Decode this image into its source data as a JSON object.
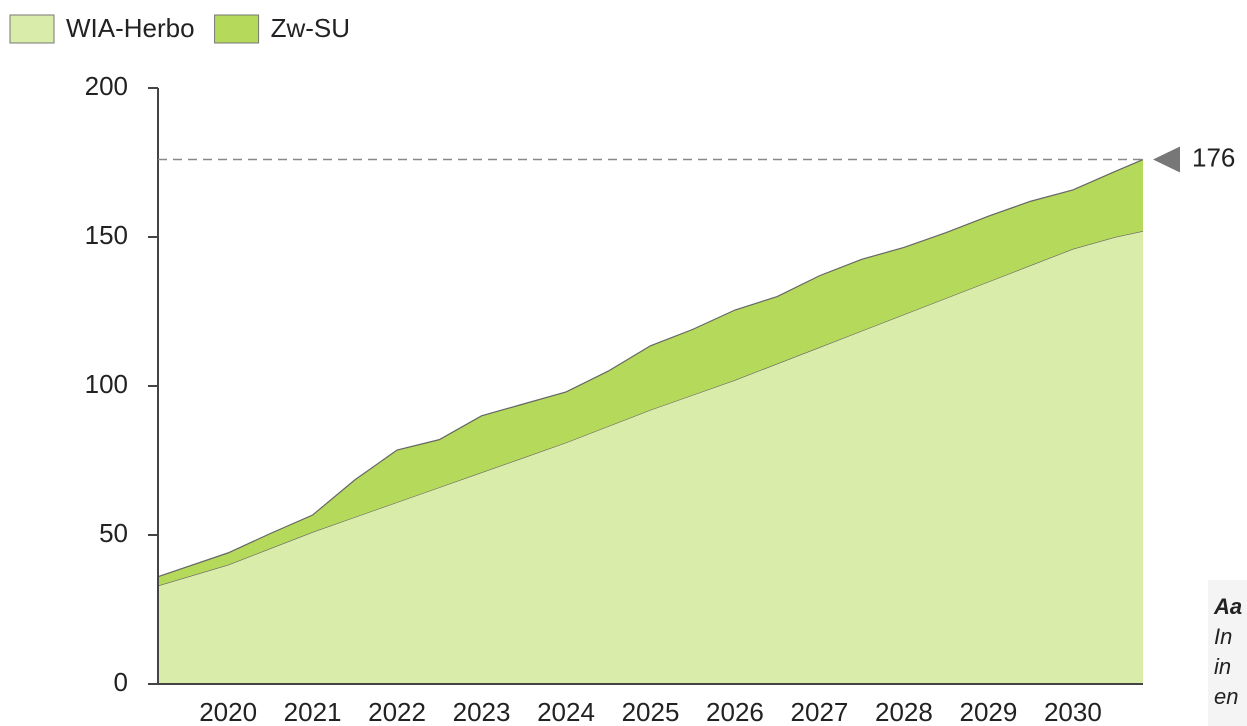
{
  "chart_data": {
    "type": "stacked_area",
    "x": [
      2019.17,
      2020,
      2020.5,
      2021,
      2021.5,
      2022,
      2022.5,
      2023,
      2023.5,
      2024,
      2024.5,
      2025,
      2025.5,
      2026,
      2026.5,
      2027,
      2027.5,
      2028,
      2028.5,
      2029,
      2029.5,
      2030,
      2030.5,
      2030.83
    ],
    "series": [
      {
        "name": "WIA-Herbo",
        "color": "#d9ecaa",
        "values": [
          33,
          40,
          45.5,
          51,
          56,
          61,
          66,
          71,
          76,
          81,
          86.5,
          92,
          97,
          102,
          107.5,
          113,
          118.5,
          124,
          129.5,
          135,
          140.5,
          146,
          150,
          152
        ]
      },
      {
        "name": "Zw-SU",
        "color": "#b5d95a",
        "values": [
          3,
          4,
          5,
          5.7,
          12.5,
          17.5,
          16,
          19,
          18,
          17,
          18.5,
          21.5,
          22,
          23.5,
          22.5,
          24,
          24,
          22.5,
          22,
          22,
          21.5,
          19.8,
          22,
          24
        ]
      }
    ],
    "xlim": [
      2019.17,
      2030.83
    ],
    "xticks": [
      2020,
      2021,
      2022,
      2023,
      2024,
      2025,
      2026,
      2027,
      2028,
      2029,
      2030
    ],
    "ylim": [
      0,
      200
    ],
    "yticks": [
      0,
      50,
      100,
      150,
      200
    ],
    "reference_line": 176,
    "note": [
      "Aa",
      "In",
      "in",
      "en"
    ]
  }
}
